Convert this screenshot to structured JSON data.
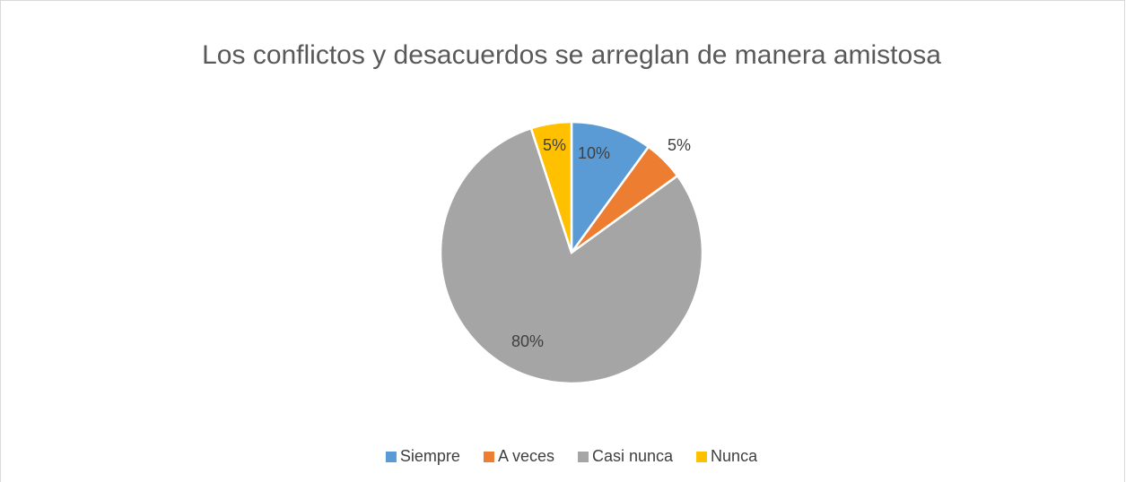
{
  "chart_data": {
    "type": "pie",
    "title": "Los conflictos y desacuerdos se arreglan de manera amistosa",
    "categories": [
      "Siempre",
      "A veces",
      "Casi nunca",
      "Nunca"
    ],
    "values": [
      10,
      5,
      80,
      5
    ],
    "value_labels": [
      "10%",
      "5%",
      "80%",
      "5%"
    ],
    "colors": [
      "#5b9bd5",
      "#ed7d31",
      "#a5a5a5",
      "#ffc000"
    ],
    "legend": "bottom"
  }
}
